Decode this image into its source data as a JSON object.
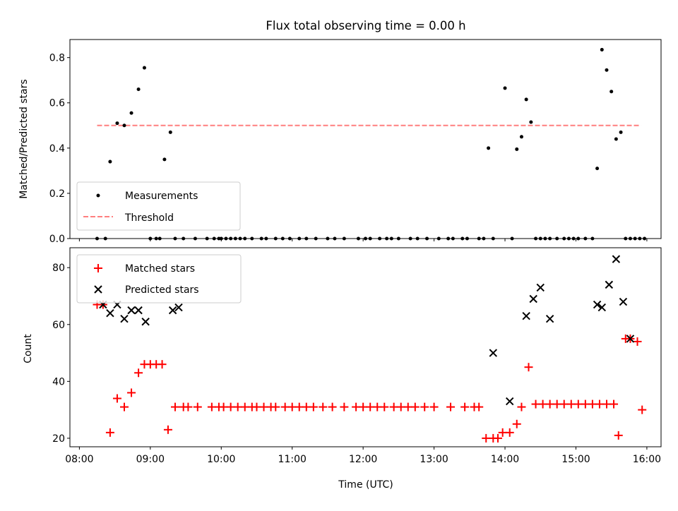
{
  "chart_data": [
    {
      "type": "scatter",
      "title": "Flux total observing time = 0.00 h",
      "ylabel": "Matched/Predicted stars",
      "xlabel": "",
      "xlim": [
        "07:52",
        "16:12"
      ],
      "ylim": [
        0,
        0.88
      ],
      "yticks": [
        "0.0",
        "0.2",
        "0.4",
        "0.6",
        "0.8"
      ],
      "ytick_values": [
        0,
        0.2,
        0.4,
        0.6,
        0.8
      ],
      "grid": false,
      "legend_position": "lower-left",
      "threshold": {
        "name": "Threshold",
        "y": 0.5,
        "x_start": "08:15",
        "x_end": "15:55",
        "color": "#ff7f7f"
      },
      "series": [
        {
          "name": "Measurements",
          "color": "#000000",
          "x": [
            "08:15",
            "08:22",
            "08:26",
            "08:32",
            "08:38",
            "08:44",
            "08:50",
            "08:55",
            "09:00",
            "09:05",
            "09:08",
            "09:12",
            "09:17",
            "09:21",
            "09:28",
            "09:38",
            "09:48",
            "09:54",
            "09:58",
            "10:00",
            "10:04",
            "10:08",
            "10:12",
            "10:16",
            "10:20",
            "10:26",
            "10:34",
            "10:38",
            "10:46",
            "10:52",
            "10:58",
            "11:06",
            "11:12",
            "11:20",
            "11:30",
            "11:36",
            "11:44",
            "11:56",
            "12:02",
            "12:06",
            "12:14",
            "12:20",
            "12:24",
            "12:30",
            "12:40",
            "12:46",
            "12:54",
            "13:04",
            "13:12",
            "13:16",
            "13:24",
            "13:28",
            "13:38",
            "13:42",
            "13:46",
            "13:50",
            "14:00",
            "14:06",
            "14:10",
            "14:14",
            "14:18",
            "14:22",
            "14:26",
            "14:30",
            "14:34",
            "14:38",
            "14:44",
            "14:50",
            "14:54",
            "14:58",
            "15:02",
            "15:08",
            "15:14",
            "15:18",
            "15:22",
            "15:26",
            "15:30",
            "15:34",
            "15:38",
            "15:42",
            "15:46",
            "15:50",
            "15:54",
            "15:58"
          ],
          "y": [
            0,
            0,
            0.34,
            0.51,
            0.5,
            0.555,
            0.66,
            0.755,
            0,
            0,
            0,
            0.35,
            0.47,
            0,
            0,
            0,
            0,
            0,
            0,
            0,
            0,
            0,
            0,
            0,
            0,
            0,
            0,
            0,
            0,
            0,
            0,
            0,
            0,
            0,
            0,
            0,
            0,
            0,
            0,
            0,
            0,
            0,
            0,
            0,
            0,
            0,
            0,
            0,
            0,
            0,
            0,
            0,
            0,
            0,
            0.4,
            0,
            0.665,
            0,
            0.395,
            0.45,
            0.615,
            0.515,
            0,
            0,
            0,
            0,
            0,
            0,
            0,
            0,
            0,
            0,
            0,
            0.31,
            0.835,
            0.745,
            0.65,
            0.44,
            0.47,
            0,
            0,
            0,
            0,
            0
          ]
        }
      ]
    },
    {
      "type": "scatter",
      "title": "",
      "ylabel": "Count",
      "xlabel": "Time (UTC)",
      "xlim": [
        "07:52",
        "16:12"
      ],
      "ylim": [
        17,
        87
      ],
      "yticks": [
        "20",
        "40",
        "60",
        "80"
      ],
      "ytick_values": [
        20,
        40,
        60,
        80
      ],
      "xticks": [
        "08:00",
        "09:00",
        "10:00",
        "11:00",
        "12:00",
        "13:00",
        "14:00",
        "15:00",
        "16:00"
      ],
      "grid": false,
      "legend_position": "upper-left",
      "series": [
        {
          "name": "Matched stars",
          "marker": "+",
          "color": "#ff0000",
          "x": [
            "08:15",
            "08:20",
            "08:26",
            "08:32",
            "08:38",
            "08:44",
            "08:50",
            "08:55",
            "09:00",
            "09:05",
            "09:10",
            "09:15",
            "09:21",
            "09:28",
            "09:32",
            "09:40",
            "09:52",
            "09:58",
            "10:02",
            "10:08",
            "10:14",
            "10:20",
            "10:26",
            "10:30",
            "10:36",
            "10:42",
            "10:46",
            "10:54",
            "11:00",
            "11:06",
            "11:12",
            "11:18",
            "11:26",
            "11:34",
            "11:44",
            "11:54",
            "12:00",
            "12:06",
            "12:12",
            "12:18",
            "12:26",
            "12:32",
            "12:38",
            "12:44",
            "12:52",
            "13:00",
            "13:14",
            "13:26",
            "13:34",
            "13:38",
            "13:44",
            "13:50",
            "13:54",
            "13:58",
            "14:04",
            "14:10",
            "14:14",
            "14:20",
            "14:26",
            "14:32",
            "14:38",
            "14:44",
            "14:50",
            "14:56",
            "15:02",
            "15:08",
            "15:14",
            "15:20",
            "15:26",
            "15:32",
            "15:36",
            "15:42",
            "15:46",
            "15:52",
            "15:56"
          ],
          "y": [
            67,
            67,
            22,
            34,
            31,
            36,
            43,
            46,
            46,
            46,
            46,
            23,
            31,
            31,
            31,
            31,
            31,
            31,
            31,
            31,
            31,
            31,
            31,
            31,
            31,
            31,
            31,
            31,
            31,
            31,
            31,
            31,
            31,
            31,
            31,
            31,
            31,
            31,
            31,
            31,
            31,
            31,
            31,
            31,
            31,
            31,
            31,
            31,
            31,
            31,
            20,
            20,
            20,
            22,
            22,
            25,
            31,
            45,
            32,
            32,
            32,
            32,
            32,
            32,
            32,
            32,
            32,
            32,
            32,
            32,
            21,
            55,
            55,
            54,
            30
          ]
        },
        {
          "name": "Predicted stars",
          "marker": "x",
          "color": "#000000",
          "x": [
            "08:20",
            "08:26",
            "08:32",
            "08:38",
            "08:44",
            "08:50",
            "08:56",
            "09:19",
            "09:24",
            "13:50",
            "14:04",
            "14:18",
            "14:24",
            "14:30",
            "14:38",
            "15:18",
            "15:22",
            "15:28",
            "15:34",
            "15:40",
            "15:46"
          ],
          "y": [
            67,
            64,
            67,
            62,
            65,
            65,
            61,
            65,
            66,
            50,
            33,
            63,
            69,
            73,
            62,
            67,
            66,
            74,
            83,
            68,
            55
          ]
        }
      ]
    }
  ]
}
